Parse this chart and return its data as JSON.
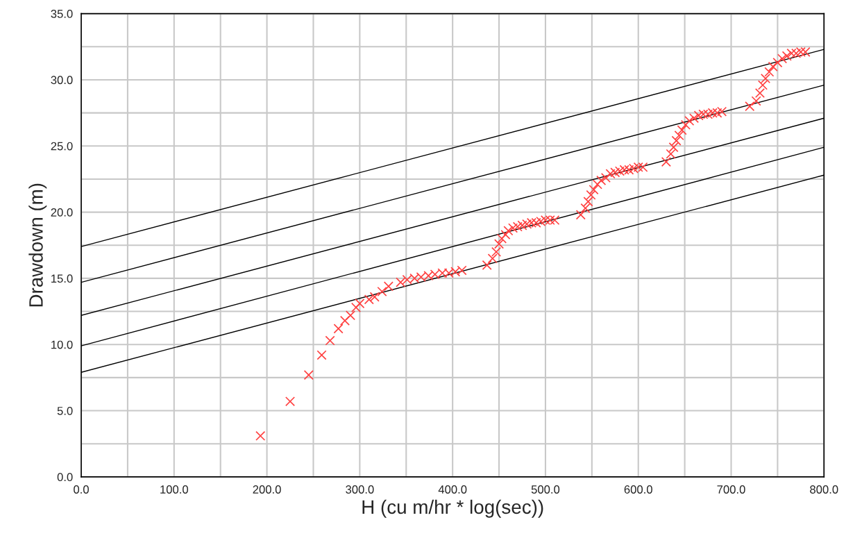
{
  "chart_data": {
    "type": "scatter",
    "xlabel": "H (cu m/hr * log(sec))",
    "ylabel": "Drawdown (m)",
    "xlim": [
      0,
      800
    ],
    "ylim": [
      0,
      35
    ],
    "xticks": [
      {
        "value": 0,
        "label": "0.0"
      },
      {
        "value": 50,
        "label": null
      },
      {
        "value": 100,
        "label": "100.0"
      },
      {
        "value": 150,
        "label": null
      },
      {
        "value": 200,
        "label": "200.0"
      },
      {
        "value": 250,
        "label": null
      },
      {
        "value": 300,
        "label": "300.0"
      },
      {
        "value": 350,
        "label": null
      },
      {
        "value": 400,
        "label": "400.0"
      },
      {
        "value": 450,
        "label": null
      },
      {
        "value": 500,
        "label": "500.0"
      },
      {
        "value": 550,
        "label": null
      },
      {
        "value": 600,
        "label": "600.0"
      },
      {
        "value": 650,
        "label": null
      },
      {
        "value": 700,
        "label": "700.0"
      },
      {
        "value": 750,
        "label": null
      },
      {
        "value": 800,
        "label": "800.0"
      }
    ],
    "yticks": [
      {
        "value": 0,
        "label": "0.0"
      },
      {
        "value": 2.5,
        "label": null
      },
      {
        "value": 5,
        "label": "5.0"
      },
      {
        "value": 7.5,
        "label": null
      },
      {
        "value": 10,
        "label": "10.0"
      },
      {
        "value": 12.5,
        "label": null
      },
      {
        "value": 15,
        "label": "15.0"
      },
      {
        "value": 17.5,
        "label": null
      },
      {
        "value": 20,
        "label": "20.0"
      },
      {
        "value": 22.5,
        "label": null
      },
      {
        "value": 25,
        "label": "25.0"
      },
      {
        "value": 27.5,
        "label": null
      },
      {
        "value": 30,
        "label": "30.0"
      },
      {
        "value": 32.5,
        "label": null
      },
      {
        "value": 35,
        "label": "35.0"
      }
    ],
    "grid": true,
    "series": [
      {
        "color": "#ff4040",
        "marker": "cross",
        "x": [
          193,
          225,
          245,
          259,
          268,
          277,
          284,
          290,
          296,
          300,
          310,
          316,
          324,
          331,
          344,
          351,
          359,
          366,
          374,
          381,
          389,
          396,
          403,
          410,
          437,
          443,
          447,
          450,
          453,
          457,
          460,
          465,
          470,
          475,
          480,
          485,
          490,
          495,
          500,
          505,
          510,
          538,
          543,
          546,
          549,
          552,
          556,
          560,
          565,
          570,
          575,
          580,
          585,
          590,
          595,
          600,
          605,
          630,
          635,
          638,
          641,
          644,
          647,
          651,
          655,
          660,
          665,
          670,
          675,
          680,
          685,
          690,
          720,
          727,
          731,
          734,
          737,
          741,
          745,
          750,
          755,
          760,
          765,
          770,
          775,
          780
        ],
        "values": [
          3.1,
          5.7,
          7.7,
          9.2,
          10.3,
          11.2,
          11.8,
          12.2,
          12.8,
          13.1,
          13.4,
          13.6,
          14.0,
          14.4,
          14.7,
          14.9,
          15.0,
          15.1,
          15.2,
          15.3,
          15.4,
          15.4,
          15.5,
          15.6,
          16.0,
          16.5,
          17.0,
          17.6,
          18.0,
          18.3,
          18.6,
          18.8,
          18.9,
          19.0,
          19.1,
          19.2,
          19.2,
          19.3,
          19.4,
          19.4,
          19.4,
          19.8,
          20.3,
          20.8,
          21.3,
          21.7,
          22.1,
          22.4,
          22.6,
          22.9,
          23.0,
          23.1,
          23.2,
          23.2,
          23.3,
          23.4,
          23.4,
          23.8,
          24.4,
          24.9,
          25.4,
          25.8,
          26.2,
          26.6,
          26.9,
          27.1,
          27.3,
          27.4,
          27.4,
          27.5,
          27.5,
          27.6,
          28.0,
          28.4,
          29.0,
          29.6,
          30.1,
          30.6,
          31.0,
          31.3,
          31.6,
          31.8,
          32.0,
          32.0,
          32.1,
          32.1
        ]
      },
      {
        "type": "line",
        "color": "#000000",
        "marker": "none",
        "x": [
          0,
          800
        ],
        "values": [
          17.4,
          32.3
        ]
      },
      {
        "type": "line",
        "color": "#000000",
        "marker": "none",
        "x": [
          0,
          800
        ],
        "values": [
          14.7,
          29.6
        ]
      },
      {
        "type": "line",
        "color": "#000000",
        "marker": "none",
        "x": [
          0,
          800
        ],
        "values": [
          12.2,
          27.1
        ]
      },
      {
        "type": "line",
        "color": "#000000",
        "marker": "none",
        "x": [
          0,
          800
        ],
        "values": [
          9.9,
          24.9
        ]
      },
      {
        "type": "line",
        "color": "#000000",
        "marker": "none",
        "x": [
          0,
          800
        ],
        "values": [
          7.9,
          22.8
        ]
      }
    ]
  }
}
